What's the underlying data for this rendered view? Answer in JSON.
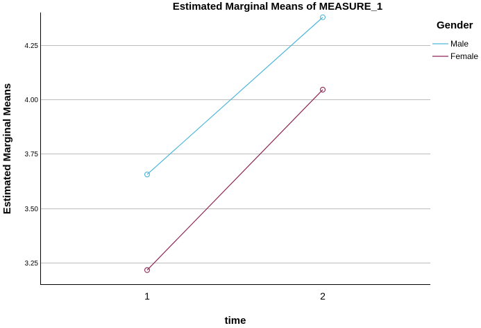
{
  "chart_data": {
    "type": "line",
    "title": "Estimated Marginal Means of MEASURE_1",
    "xlabel": "time",
    "ylabel": "Estimated Marginal Means",
    "categories": [
      "1",
      "2"
    ],
    "ylim": [
      3.15,
      4.4
    ],
    "yticks": [
      "3.25",
      "3.50",
      "3.75",
      "4.00",
      "4.25"
    ],
    "grid": true,
    "legend": {
      "title": "Gender",
      "placement": "top-right"
    },
    "series": [
      {
        "name": "Male",
        "values": [
          3.655,
          4.378
        ],
        "color": "#4db6d9",
        "marker": "open-circle"
      },
      {
        "name": "Female",
        "values": [
          3.215,
          4.045
        ],
        "color": "#8e2453",
        "marker": "open-circle"
      }
    ]
  }
}
